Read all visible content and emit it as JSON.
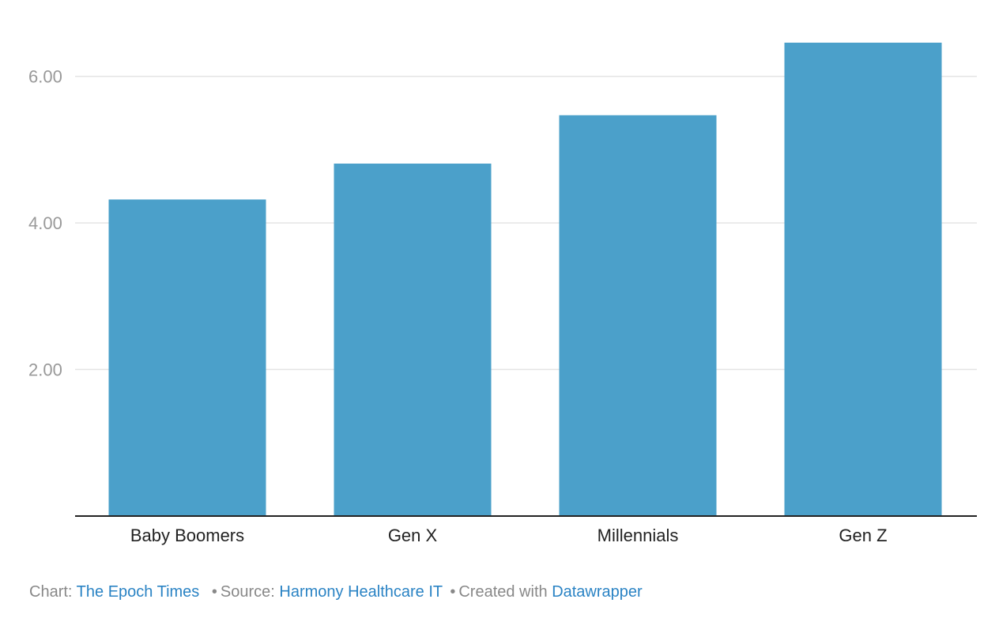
{
  "chart_data": {
    "type": "bar",
    "categories": [
      "Baby Boomers",
      "Gen X",
      "Millennials",
      "Gen Z"
    ],
    "values": [
      4.32,
      4.81,
      5.47,
      6.46
    ],
    "ylim": [
      0,
      6.46
    ],
    "yticks": [
      2,
      4,
      6
    ],
    "ytick_labels": [
      "2.00",
      "4.00",
      "6.00"
    ],
    "grid": true,
    "bar_color": "#4ba0ca"
  },
  "footer": {
    "chart_prefix": "Chart:",
    "chart_source": "The Epoch Times",
    "source_prefix": "Source:",
    "source_name": "Harmony Healthcare IT",
    "created_prefix": "Created with",
    "created_tool": "Datawrapper"
  },
  "colors": {
    "link": "#2a83c4",
    "grid": "#e4e4e4",
    "axis": "#222222"
  }
}
